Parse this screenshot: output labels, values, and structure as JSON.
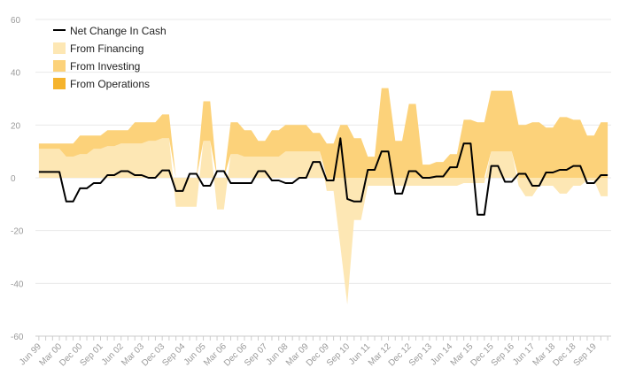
{
  "colors": {
    "financing": "#fde7b4",
    "investing": "#fcd27a",
    "operations": "#f5b32c",
    "net_line": "#000000",
    "grid": "#e9e9e9",
    "tick_text": "#9a9a9a"
  },
  "chart_data": {
    "type": "area",
    "stacked": true,
    "title": "",
    "xlabel": "",
    "ylabel": "",
    "ylim": [
      -60,
      60
    ],
    "yticks": [
      60,
      40,
      20,
      0,
      -20,
      -40,
      -60
    ],
    "grid": "horizontal",
    "legend_position": "top-left",
    "legend": [
      {
        "name": "Net Change In Cash",
        "key": "net",
        "marker": "line"
      },
      {
        "name": "From Financing",
        "key": "financing",
        "marker": "area"
      },
      {
        "name": "From Investing",
        "key": "investing",
        "marker": "area"
      },
      {
        "name": "From Operations",
        "key": "operations",
        "marker": "area"
      }
    ],
    "x_tick_labels": [
      "Jun 99",
      "Mar 00",
      "Dec 00",
      "Sep 01",
      "Jun 02",
      "Mar 03",
      "Dec 03",
      "Sep 04",
      "Jun 05",
      "Mar 06",
      "Dec 06",
      "Sep 07",
      "Jun 08",
      "Mar 09",
      "Dec 09",
      "Sep 10",
      "Jun 11",
      "Mar 12",
      "Dec 12",
      "Sep 13",
      "Jun 14",
      "Mar 15",
      "Dec 15",
      "Sep 16",
      "Jun 17",
      "Mar 18",
      "Dec 18",
      "Sep 19"
    ],
    "x_tick_every": 3,
    "series": [
      {
        "name": "From Operations",
        "key": "operations",
        "values": [
          0,
          0,
          0,
          0,
          0,
          0,
          0,
          0,
          0,
          0,
          0,
          0,
          0,
          0,
          0,
          0,
          0,
          0,
          0,
          0,
          0,
          0,
          0,
          0,
          0,
          0,
          0,
          0,
          0,
          0,
          0,
          0,
          0,
          0,
          0,
          0,
          0,
          0,
          0,
          0,
          0,
          0,
          0,
          0,
          0,
          0,
          0,
          0,
          0,
          0,
          0,
          0,
          0,
          0,
          0,
          0,
          0,
          0,
          0,
          0,
          0,
          0,
          0,
          0,
          0,
          0,
          0,
          0,
          0,
          0,
          0,
          0,
          0,
          0,
          0,
          0,
          0,
          0,
          0,
          0,
          0,
          0,
          0,
          0
        ]
      },
      {
        "name": "From Financing",
        "key": "financing",
        "values": [
          11,
          11,
          11,
          11,
          8,
          8,
          9,
          9,
          11,
          11,
          12,
          12,
          13,
          13,
          13,
          13,
          14,
          14,
          15,
          15,
          -11,
          -11,
          -11,
          -11,
          14,
          14,
          -12,
          -12,
          9,
          9,
          8,
          8,
          8,
          8,
          8,
          8,
          10,
          10,
          10,
          10,
          10,
          10,
          -5,
          -5,
          -26,
          -48,
          -16,
          -16,
          -3,
          -3,
          -3,
          -3,
          -3,
          -3,
          -3,
          -3,
          -3,
          -3,
          -3,
          -3,
          -3,
          -3,
          -2,
          -2,
          -2,
          -2,
          10,
          10,
          10,
          10,
          -3,
          -7,
          -7,
          -3,
          -3,
          -3,
          -6,
          -6,
          -3,
          -3,
          -1,
          -1,
          -7,
          -7
        ]
      },
      {
        "name": "From Investing",
        "key": "investing",
        "values": [
          2,
          2,
          2,
          2,
          5,
          5,
          7,
          7,
          5,
          5,
          6,
          6,
          5,
          5,
          8,
          8,
          7,
          7,
          9,
          9,
          0,
          0,
          0,
          0,
          15,
          15,
          0,
          0,
          12,
          12,
          10,
          10,
          6,
          6,
          10,
          10,
          10,
          10,
          10,
          10,
          7,
          7,
          13,
          13,
          20,
          20,
          15,
          15,
          8,
          8,
          34,
          34,
          14,
          14,
          28,
          28,
          5,
          5,
          6,
          6,
          9,
          9,
          22,
          22,
          21,
          21,
          23,
          23,
          23,
          23,
          20,
          20,
          21,
          21,
          19,
          19,
          23,
          23,
          22,
          22,
          16,
          16,
          21,
          21
        ]
      },
      {
        "name": "Net Change In Cash",
        "key": "net",
        "values": [
          2.2,
          2.2,
          2.2,
          2.2,
          -9,
          -9,
          -4,
          -4,
          -2,
          -2,
          1,
          1,
          2.5,
          2.5,
          1,
          1,
          0,
          0,
          2.8,
          2.8,
          -5,
          -5,
          1.5,
          1.5,
          -3,
          -3,
          2.5,
          2.5,
          -2,
          -2,
          -2,
          -2,
          2.5,
          2.5,
          -1,
          -1,
          -2,
          -2,
          0,
          0,
          6,
          6,
          -1,
          -1,
          15,
          -8,
          -9,
          -9,
          3,
          3,
          10,
          10,
          -6,
          -6,
          2.5,
          2.5,
          0,
          0,
          0.5,
          0.5,
          4,
          4,
          13,
          13,
          -14,
          -14,
          4.5,
          4.5,
          -1.5,
          -1.5,
          1.5,
          1.5,
          -3,
          -3,
          2,
          2,
          3,
          3,
          4.5,
          4.5,
          -2,
          -2,
          1,
          1
        ]
      }
    ]
  }
}
